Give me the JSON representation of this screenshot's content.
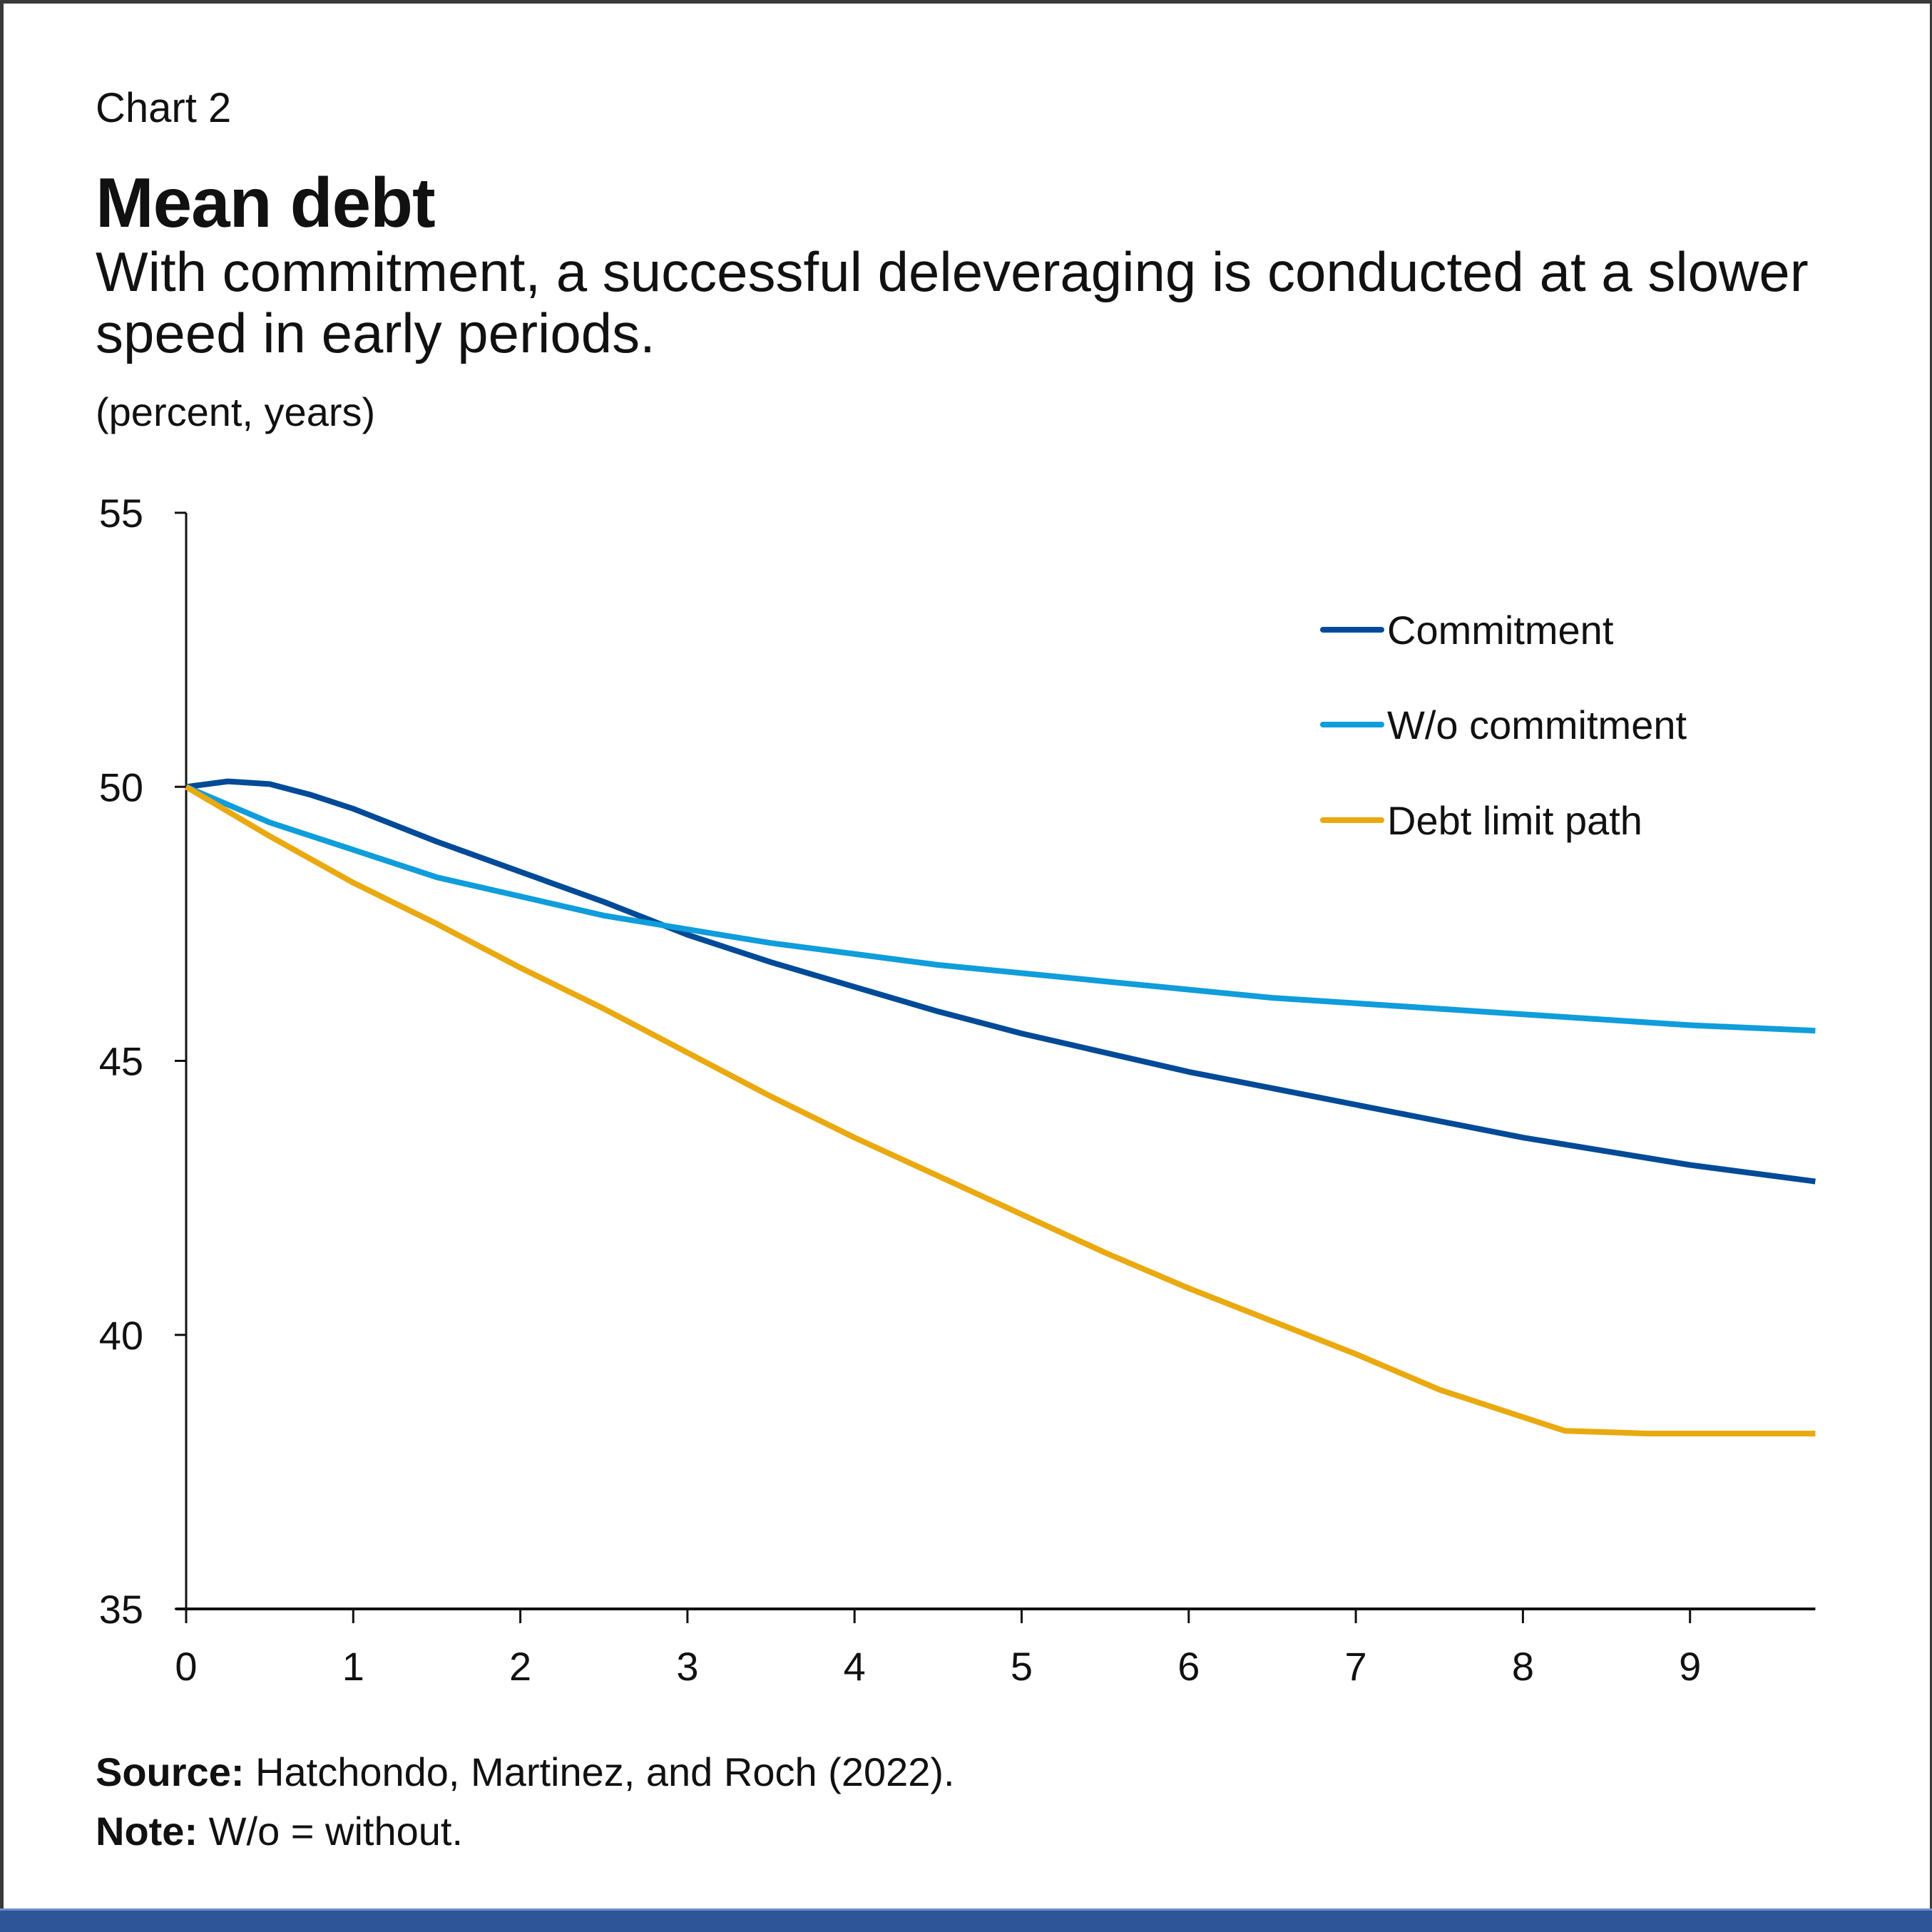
{
  "header": {
    "chart_number": "Chart 2",
    "title": "Mean debt",
    "subtitle": "With commitment, a successful deleveraging is conducted at a slower speed in early periods.",
    "units": "(percent, years)"
  },
  "footer": {
    "source_label": "Source:",
    "source_text": " Hatchondo, Martinez, and Roch (2022).",
    "note_label": "Note:",
    "note_text": " W/o = without."
  },
  "colors": {
    "commitment": "#004a97",
    "without_commitment": "#0f9ddb",
    "debt_limit": "#e9a90f",
    "bottom_bar": "#2e5597"
  },
  "chart_data": {
    "type": "line",
    "title": "Mean debt",
    "xlabel": "",
    "ylabel": "(percent, years)",
    "xlim": [
      0,
      9.75
    ],
    "ylim": [
      35,
      55
    ],
    "xticks": [
      0,
      1,
      2,
      3,
      4,
      5,
      6,
      7,
      8,
      9
    ],
    "yticks": [
      35,
      40,
      45,
      50,
      55
    ],
    "grid": false,
    "legend_position": "top-right",
    "series": [
      {
        "name": "Commitment",
        "color": "#004a97",
        "x": [
          0,
          0.25,
          0.5,
          0.75,
          1,
          1.5,
          2,
          2.5,
          3,
          3.5,
          4,
          4.5,
          5,
          5.5,
          6,
          6.5,
          7,
          7.5,
          8,
          8.5,
          9,
          9.75
        ],
        "values": [
          50,
          50.1,
          50.05,
          49.85,
          49.6,
          49.0,
          48.45,
          47.9,
          47.3,
          46.8,
          46.35,
          45.9,
          45.5,
          45.15,
          44.8,
          44.5,
          44.2,
          43.9,
          43.6,
          43.35,
          43.1,
          42.8
        ]
      },
      {
        "name": "W/o commitment",
        "color": "#0f9ddb",
        "x": [
          0,
          0.5,
          1,
          1.5,
          2,
          2.5,
          3,
          3.5,
          4,
          4.5,
          5,
          5.5,
          6,
          6.5,
          7,
          7.5,
          8,
          8.5,
          9,
          9.75
        ],
        "values": [
          50,
          49.35,
          48.85,
          48.35,
          48.0,
          47.65,
          47.4,
          47.15,
          46.95,
          46.75,
          46.6,
          46.45,
          46.3,
          46.15,
          46.05,
          45.95,
          45.85,
          45.75,
          45.65,
          45.55
        ]
      },
      {
        "name": "Debt limit path",
        "color": "#e9a90f",
        "x": [
          0,
          0.5,
          1,
          1.5,
          2,
          2.5,
          3,
          3.5,
          4,
          4.5,
          5,
          5.5,
          6,
          6.5,
          7,
          7.5,
          8,
          8.25,
          8.75,
          9.75
        ],
        "values": [
          50,
          49.1,
          48.25,
          47.5,
          46.7,
          45.95,
          45.15,
          44.35,
          43.6,
          42.9,
          42.2,
          41.5,
          40.85,
          40.25,
          39.65,
          39.0,
          38.5,
          38.25,
          38.2,
          38.2
        ]
      }
    ]
  }
}
